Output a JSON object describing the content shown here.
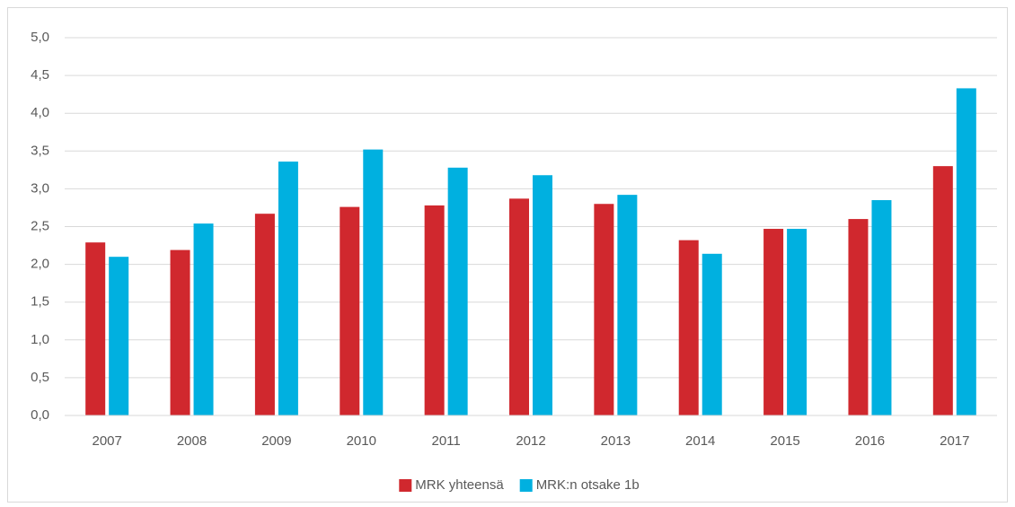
{
  "chart_data": {
    "type": "bar",
    "categories": [
      "2007",
      "2008",
      "2009",
      "2010",
      "2011",
      "2012",
      "2013",
      "2014",
      "2015",
      "2016",
      "2017"
    ],
    "series": [
      {
        "name": "MRK yhteensä",
        "color": "#d0282e",
        "values": [
          2.29,
          2.19,
          2.67,
          2.76,
          2.78,
          2.87,
          2.8,
          2.32,
          2.47,
          2.6,
          3.3
        ]
      },
      {
        "name": "MRK:n otsake 1b",
        "color": "#00b0e0",
        "values": [
          2.1,
          2.54,
          3.36,
          3.52,
          3.28,
          3.18,
          2.92,
          2.14,
          2.47,
          2.85,
          4.33
        ]
      }
    ],
    "ylim": [
      0,
      5
    ],
    "yticks": [
      {
        "value": 0,
        "label": "0,0"
      },
      {
        "value": 0.5,
        "label": "0,5"
      },
      {
        "value": 1,
        "label": "1,0"
      },
      {
        "value": 1.5,
        "label": "1,5"
      },
      {
        "value": 2,
        "label": "2,0"
      },
      {
        "value": 2.5,
        "label": "2,5"
      },
      {
        "value": 3,
        "label": "3,0"
      },
      {
        "value": 3.5,
        "label": "3,5"
      },
      {
        "value": 4,
        "label": "4,0"
      },
      {
        "value": 4.5,
        "label": "4,5"
      },
      {
        "value": 5,
        "label": "5,0"
      }
    ],
    "grid": true,
    "legend": "bottom"
  }
}
